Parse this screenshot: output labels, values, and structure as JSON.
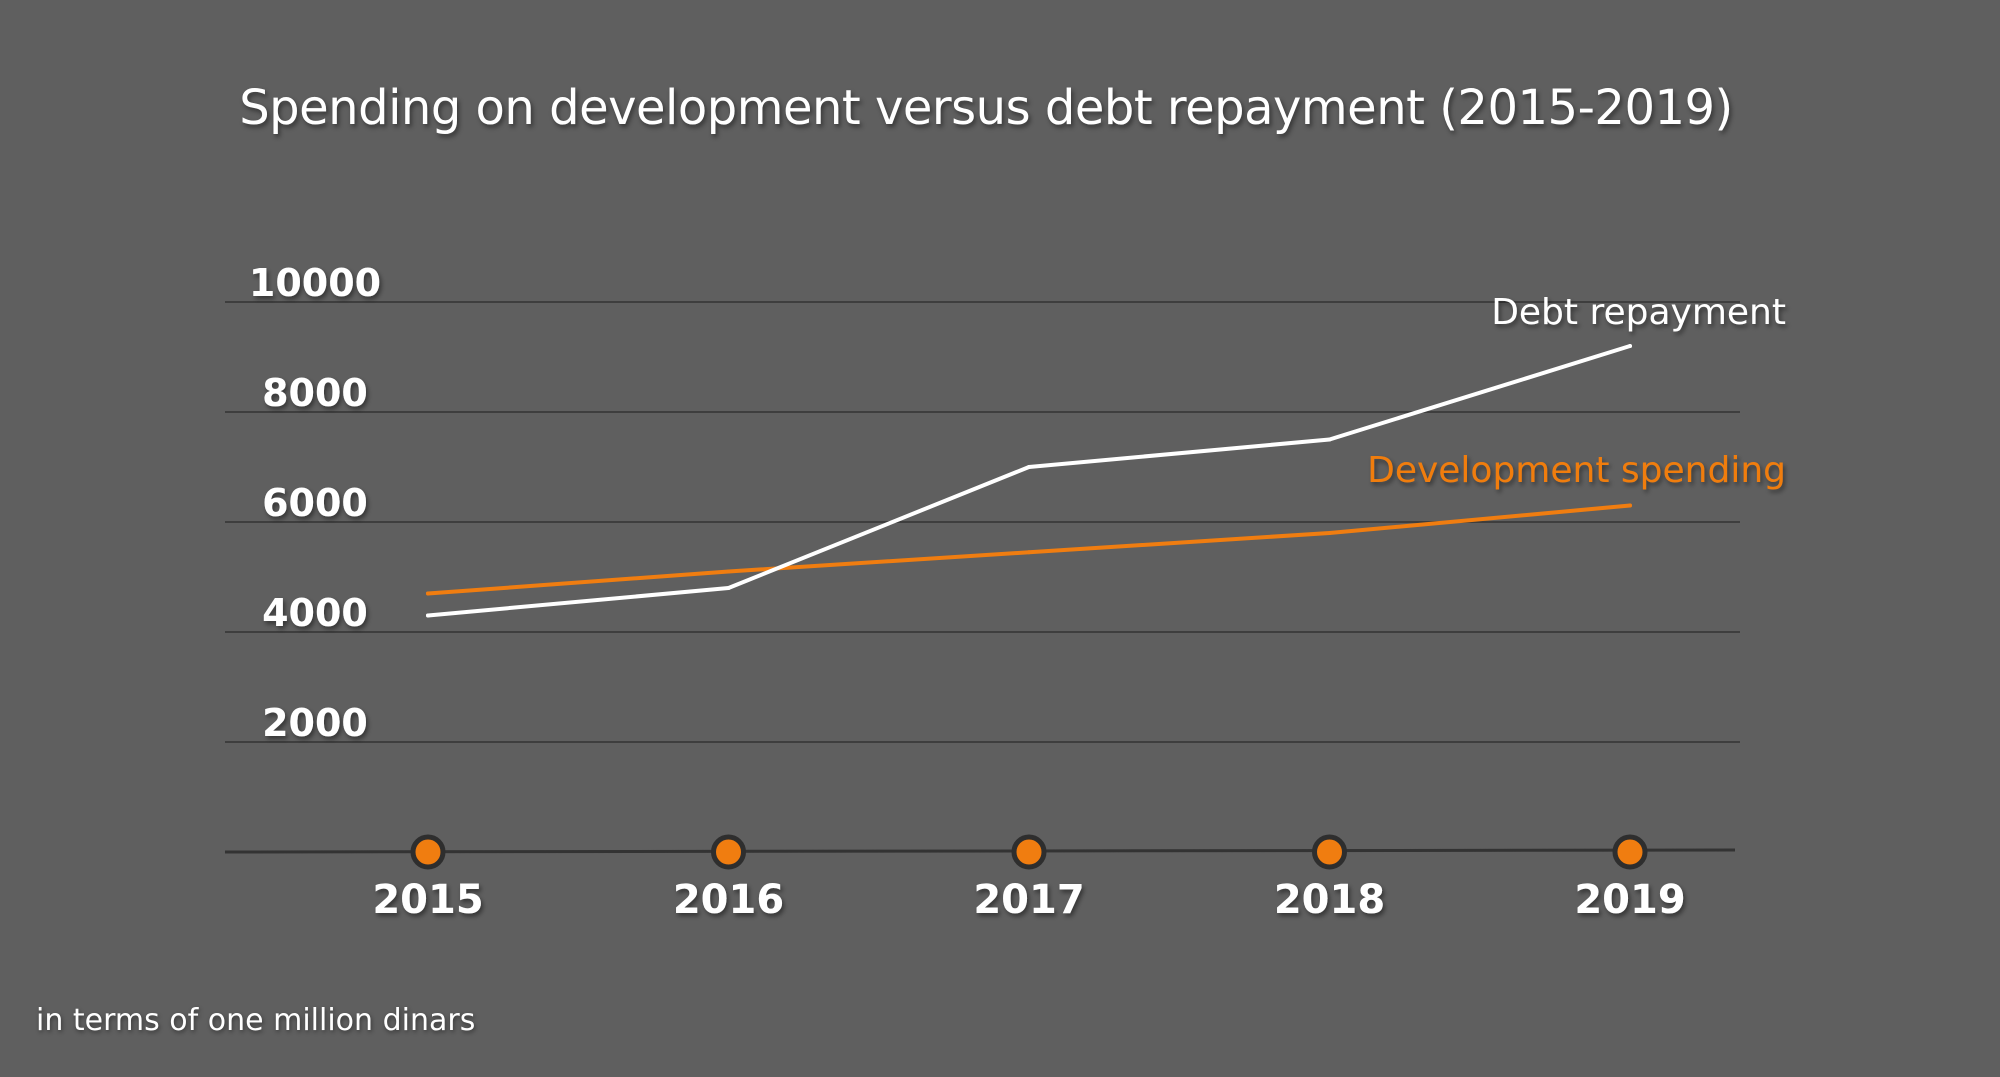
{
  "colors": {
    "background": "#5f5f5f",
    "gridline": "#3e3e3e",
    "axis": "#333333",
    "text": "#ffffff",
    "debt": "#ffffff",
    "development": "#f07d10",
    "marker_stroke": "#2e2e2e"
  },
  "chart_data": {
    "type": "line",
    "title": "Spending on development versus debt repayment (2015-2019)",
    "xlabel": "",
    "ylabel": "",
    "x": [
      "2015",
      "2016",
      "2017",
      "2018",
      "2019"
    ],
    "ylim": [
      0,
      10000
    ],
    "yticks": [
      2000,
      4000,
      6000,
      8000,
      10000
    ],
    "ytick_labels": [
      "2000",
      "4000",
      "6000",
      "8000",
      "10000"
    ],
    "grid": true,
    "series": [
      {
        "name": "Debt repayment",
        "color": "#ffffff",
        "values": [
          4300,
          4800,
          7000,
          7500,
          9200
        ]
      },
      {
        "name": "Development spending",
        "color": "#f07d10",
        "values": [
          4700,
          5100,
          5450,
          5800,
          6300
        ]
      }
    ],
    "note": "in terms of one million dinars"
  }
}
